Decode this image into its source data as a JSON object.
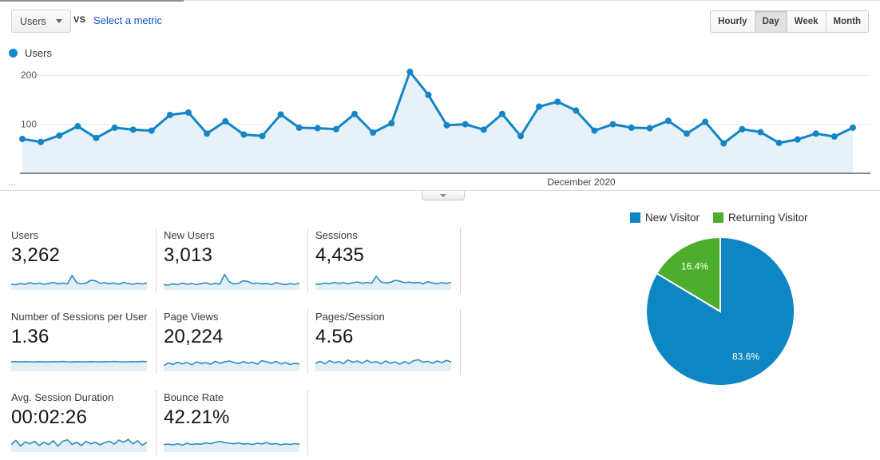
{
  "controls": {
    "metric_selector_label": "Users",
    "vs_label": "vs",
    "compare_link": "Select a metric",
    "granularity": {
      "options": [
        "Hourly",
        "Day",
        "Week",
        "Month"
      ],
      "selected": "Day"
    }
  },
  "legend": {
    "series": "Users",
    "color": "#118ac5"
  },
  "chart_data": [
    {
      "type": "line",
      "title": "Users per day",
      "series": [
        {
          "name": "Users",
          "values": [
            70,
            64,
            77,
            96,
            72,
            93,
            89,
            87,
            119,
            124,
            81,
            106,
            79,
            76,
            120,
            93,
            92,
            90,
            121,
            83,
            102,
            207,
            160,
            98,
            100,
            89,
            121,
            76,
            136,
            146,
            128,
            87,
            100,
            93,
            92,
            107,
            81,
            105,
            61,
            90,
            84,
            62,
            69,
            81,
            75,
            93
          ]
        }
      ],
      "x_axis_label": "December 2020",
      "x_overflow_label": "...",
      "yticks": [
        100,
        200
      ],
      "ylim": [
        0,
        215
      ],
      "grid": true,
      "legend_position": "top-left",
      "line_color": "#1385c6",
      "fill_color": "#e7f1f8",
      "axis_color": "#444444",
      "grid_color": "#e8e8e8"
    },
    {
      "type": "pie",
      "labels": [
        "New Visitor",
        "Returning Visitor"
      ],
      "values": [
        83.6,
        16.4
      ],
      "value_labels": [
        "83.6%",
        "16.4%"
      ],
      "colors": [
        "#0d86c3",
        "#4cae2c"
      ],
      "legend_position": "top"
    }
  ],
  "scorecards": [
    {
      "label": "Users",
      "value": "3,262",
      "spark": [
        0.3,
        0.27,
        0.35,
        0.3,
        0.4,
        0.32,
        0.38,
        0.3,
        0.36,
        0.42,
        0.33,
        0.38,
        0.32,
        0.85,
        0.4,
        0.33,
        0.38,
        0.55,
        0.52,
        0.36,
        0.4,
        0.34,
        0.38,
        0.3,
        0.42,
        0.35,
        0.3,
        0.36,
        0.32,
        0.38
      ]
    },
    {
      "label": "New Users",
      "value": "3,013",
      "spark": [
        0.28,
        0.25,
        0.33,
        0.28,
        0.38,
        0.3,
        0.35,
        0.28,
        0.34,
        0.4,
        0.3,
        0.36,
        0.3,
        0.92,
        0.45,
        0.32,
        0.36,
        0.52,
        0.48,
        0.34,
        0.38,
        0.32,
        0.36,
        0.28,
        0.4,
        0.33,
        0.28,
        0.34,
        0.3,
        0.36
      ]
    },
    {
      "label": "Sessions",
      "value": "4,435",
      "spark": [
        0.32,
        0.3,
        0.38,
        0.33,
        0.42,
        0.35,
        0.4,
        0.33,
        0.4,
        0.45,
        0.36,
        0.42,
        0.36,
        0.8,
        0.45,
        0.38,
        0.42,
        0.55,
        0.5,
        0.4,
        0.44,
        0.38,
        0.42,
        0.34,
        0.46,
        0.38,
        0.34,
        0.4,
        0.36,
        0.42
      ]
    },
    {
      "label": "Number of Sessions per User",
      "value": "1.36",
      "spark": [
        0.55,
        0.56,
        0.54,
        0.56,
        0.55,
        0.54,
        0.56,
        0.55,
        0.54,
        0.56,
        0.55,
        0.57,
        0.55,
        0.54,
        0.56,
        0.55,
        0.54,
        0.56,
        0.55,
        0.54,
        0.56,
        0.55,
        0.57,
        0.55,
        0.54,
        0.55,
        0.56,
        0.54,
        0.58,
        0.55
      ]
    },
    {
      "label": "Page Views",
      "value": "20,224",
      "spark": [
        0.3,
        0.48,
        0.38,
        0.52,
        0.42,
        0.5,
        0.36,
        0.55,
        0.44,
        0.5,
        0.4,
        0.58,
        0.46,
        0.54,
        0.6,
        0.5,
        0.44,
        0.56,
        0.46,
        0.52,
        0.4,
        0.62,
        0.55,
        0.45,
        0.58,
        0.42,
        0.5,
        0.38,
        0.46,
        0.4
      ]
    },
    {
      "label": "Pages/Session",
      "value": "4.56",
      "spark": [
        0.45,
        0.58,
        0.42,
        0.62,
        0.5,
        0.56,
        0.44,
        0.66,
        0.52,
        0.6,
        0.46,
        0.64,
        0.5,
        0.56,
        0.42,
        0.6,
        0.46,
        0.54,
        0.4,
        0.56,
        0.44,
        0.62,
        0.68,
        0.52,
        0.58,
        0.46,
        0.6,
        0.5,
        0.64,
        0.54
      ]
    },
    {
      "label": "Avg. Session Duration",
      "value": "00:02:26",
      "spark": [
        0.42,
        0.68,
        0.32,
        0.58,
        0.46,
        0.62,
        0.36,
        0.56,
        0.42,
        0.66,
        0.32,
        0.62,
        0.72,
        0.42,
        0.56,
        0.36,
        0.62,
        0.46,
        0.56,
        0.4,
        0.54,
        0.62,
        0.44,
        0.7,
        0.56,
        0.74,
        0.46,
        0.66,
        0.38,
        0.56
      ]
    },
    {
      "label": "Bounce Rate",
      "value": "42.21%",
      "spark": [
        0.42,
        0.44,
        0.4,
        0.47,
        0.38,
        0.5,
        0.42,
        0.46,
        0.44,
        0.52,
        0.47,
        0.56,
        0.62,
        0.54,
        0.5,
        0.47,
        0.52,
        0.44,
        0.48,
        0.42,
        0.5,
        0.46,
        0.54,
        0.44,
        0.48,
        0.4,
        0.46,
        0.42,
        0.48,
        0.44
      ]
    }
  ],
  "colors": {
    "spark_line": "#2b8cc0",
    "spark_fill": "#e2eff7",
    "link": "#1155cc"
  }
}
